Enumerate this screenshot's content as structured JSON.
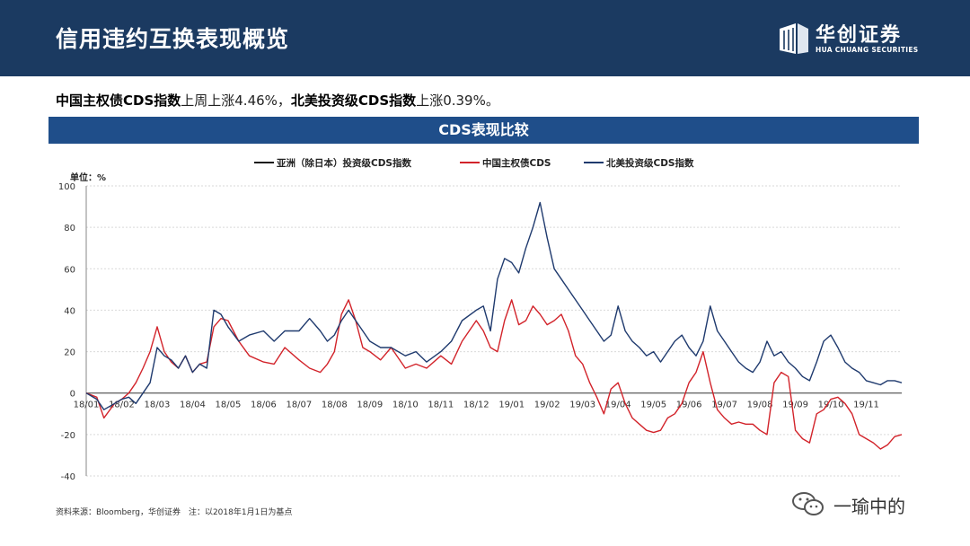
{
  "header": {
    "title": "信用违约互换表现概览",
    "logo_cn": "华创证券",
    "logo_en": "HUA CHUANG SECURITIES",
    "bg_color": "#1b3a61"
  },
  "summary": {
    "part1_bold": "中国主权债CDS指数",
    "part1_text": "上周上涨4.46%，",
    "part2_bold": "北美投资级CDS指数",
    "part2_text": "上涨0.39%。"
  },
  "banner": {
    "title": "CDS表现比较",
    "color": "#1f4e8a"
  },
  "source": "资料来源：Bloomberg，华创证券　注：以2018年1月1日为基点",
  "watermark": {
    "text": "一瑜中的",
    "icon": "wechat-icon"
  },
  "chart_data": {
    "type": "line",
    "unit_label": "单位：%",
    "title": "",
    "xlabel": "",
    "ylabel": "",
    "ylim": [
      -40,
      100
    ],
    "yticks": [
      -40,
      -20,
      0,
      20,
      40,
      60,
      80,
      100
    ],
    "x_tick_labels": [
      "18/01",
      "18/02",
      "18/03",
      "18/04",
      "18/05",
      "18/06",
      "18/07",
      "18/08",
      "18/09",
      "18/10",
      "18/11",
      "18/12",
      "19/01",
      "19/02",
      "19/03",
      "19/04",
      "19/05",
      "19/06",
      "19/07",
      "19/08",
      "19/09",
      "19/10",
      "19/11"
    ],
    "grid": true,
    "legend_position": "top",
    "series": [
      {
        "name": "亚洲（除日本）投资级CDS指数",
        "color": "#1a1a1a",
        "x": [],
        "y": []
      },
      {
        "name": "中国主权债CDS",
        "color": "#d2232a",
        "x": [
          0,
          0.3,
          0.5,
          0.8,
          1.0,
          1.2,
          1.4,
          1.6,
          1.8,
          2.0,
          2.2,
          2.4,
          2.6,
          2.8,
          3.0,
          3.2,
          3.4,
          3.6,
          3.8,
          4.0,
          4.3,
          4.6,
          5.0,
          5.3,
          5.6,
          6.0,
          6.3,
          6.6,
          6.8,
          7.0,
          7.2,
          7.4,
          7.6,
          7.8,
          8.0,
          8.3,
          8.6,
          9.0,
          9.3,
          9.6,
          10.0,
          10.3,
          10.6,
          11.0,
          11.2,
          11.4,
          11.6,
          11.8,
          12.0,
          12.2,
          12.4,
          12.6,
          12.8,
          13.0,
          13.2,
          13.4,
          13.6,
          13.8,
          14.0,
          14.2,
          14.4,
          14.6,
          14.8,
          15.0,
          15.2,
          15.4,
          15.6,
          15.8,
          16.0,
          16.2,
          16.4,
          16.6,
          16.8,
          17.0,
          17.2,
          17.4,
          17.6,
          17.8,
          18.0,
          18.2,
          18.4,
          18.6,
          18.8,
          19.0,
          19.2,
          19.4,
          19.6,
          19.8,
          20.0,
          20.2,
          20.4,
          20.6,
          20.8,
          21.0,
          21.2,
          21.4,
          21.6,
          21.8,
          22.0,
          22.2,
          22.4,
          22.6,
          22.8,
          23.0
        ],
        "y": [
          0,
          -2,
          -12,
          -5,
          -3,
          0,
          5,
          12,
          20,
          32,
          20,
          15,
          12,
          18,
          10,
          14,
          15,
          32,
          36,
          35,
          25,
          18,
          15,
          14,
          22,
          16,
          12,
          10,
          14,
          20,
          38,
          45,
          35,
          22,
          20,
          16,
          22,
          12,
          14,
          12,
          18,
          14,
          25,
          35,
          30,
          22,
          20,
          35,
          45,
          33,
          35,
          42,
          38,
          33,
          35,
          38,
          30,
          18,
          14,
          5,
          -2,
          -10,
          2,
          5,
          -5,
          -12,
          -15,
          -18,
          -19,
          -18,
          -12,
          -10,
          -5,
          5,
          10,
          20,
          5,
          -8,
          -12,
          -15,
          -14,
          -15,
          -15,
          -18,
          -20,
          5,
          10,
          8,
          -18,
          -22,
          -24,
          -10,
          -8,
          -3,
          -2,
          -5,
          -10,
          -20,
          -22,
          -24,
          -27,
          -25,
          -21,
          -20
        ]
      },
      {
        "name": "北美投资级CDS指数",
        "color": "#1f3a6e",
        "x": [
          0,
          0.3,
          0.5,
          0.8,
          1.0,
          1.2,
          1.4,
          1.6,
          1.8,
          2.0,
          2.2,
          2.4,
          2.6,
          2.8,
          3.0,
          3.2,
          3.4,
          3.6,
          3.8,
          4.0,
          4.3,
          4.6,
          5.0,
          5.3,
          5.6,
          6.0,
          6.3,
          6.6,
          6.8,
          7.0,
          7.2,
          7.4,
          7.6,
          7.8,
          8.0,
          8.3,
          8.6,
          9.0,
          9.3,
          9.6,
          10.0,
          10.3,
          10.6,
          11.0,
          11.2,
          11.4,
          11.6,
          11.8,
          12.0,
          12.2,
          12.4,
          12.6,
          12.8,
          13.0,
          13.2,
          13.4,
          13.6,
          13.8,
          14.0,
          14.2,
          14.4,
          14.6,
          14.8,
          15.0,
          15.2,
          15.4,
          15.6,
          15.8,
          16.0,
          16.2,
          16.4,
          16.6,
          16.8,
          17.0,
          17.2,
          17.4,
          17.6,
          17.8,
          18.0,
          18.2,
          18.4,
          18.6,
          18.8,
          19.0,
          19.2,
          19.4,
          19.6,
          19.8,
          20.0,
          20.2,
          20.4,
          20.6,
          20.8,
          21.0,
          21.2,
          21.4,
          21.6,
          21.8,
          22.0,
          22.2,
          22.4,
          22.6,
          22.8,
          23.0
        ],
        "y": [
          0,
          -3,
          -8,
          -5,
          -3,
          -2,
          -5,
          0,
          5,
          22,
          18,
          16,
          12,
          18,
          10,
          14,
          12,
          40,
          38,
          32,
          25,
          28,
          30,
          25,
          30,
          30,
          36,
          30,
          25,
          28,
          35,
          40,
          35,
          30,
          25,
          22,
          22,
          18,
          20,
          15,
          20,
          25,
          35,
          40,
          42,
          30,
          55,
          65,
          63,
          58,
          70,
          80,
          92,
          75,
          60,
          55,
          50,
          45,
          40,
          35,
          30,
          25,
          28,
          42,
          30,
          25,
          22,
          18,
          20,
          15,
          20,
          25,
          28,
          22,
          18,
          25,
          42,
          30,
          25,
          20,
          15,
          12,
          10,
          15,
          25,
          18,
          20,
          15,
          12,
          8,
          6,
          15,
          25,
          28,
          22,
          15,
          12,
          10,
          6,
          5,
          4,
          6,
          6,
          5
        ]
      }
    ]
  }
}
